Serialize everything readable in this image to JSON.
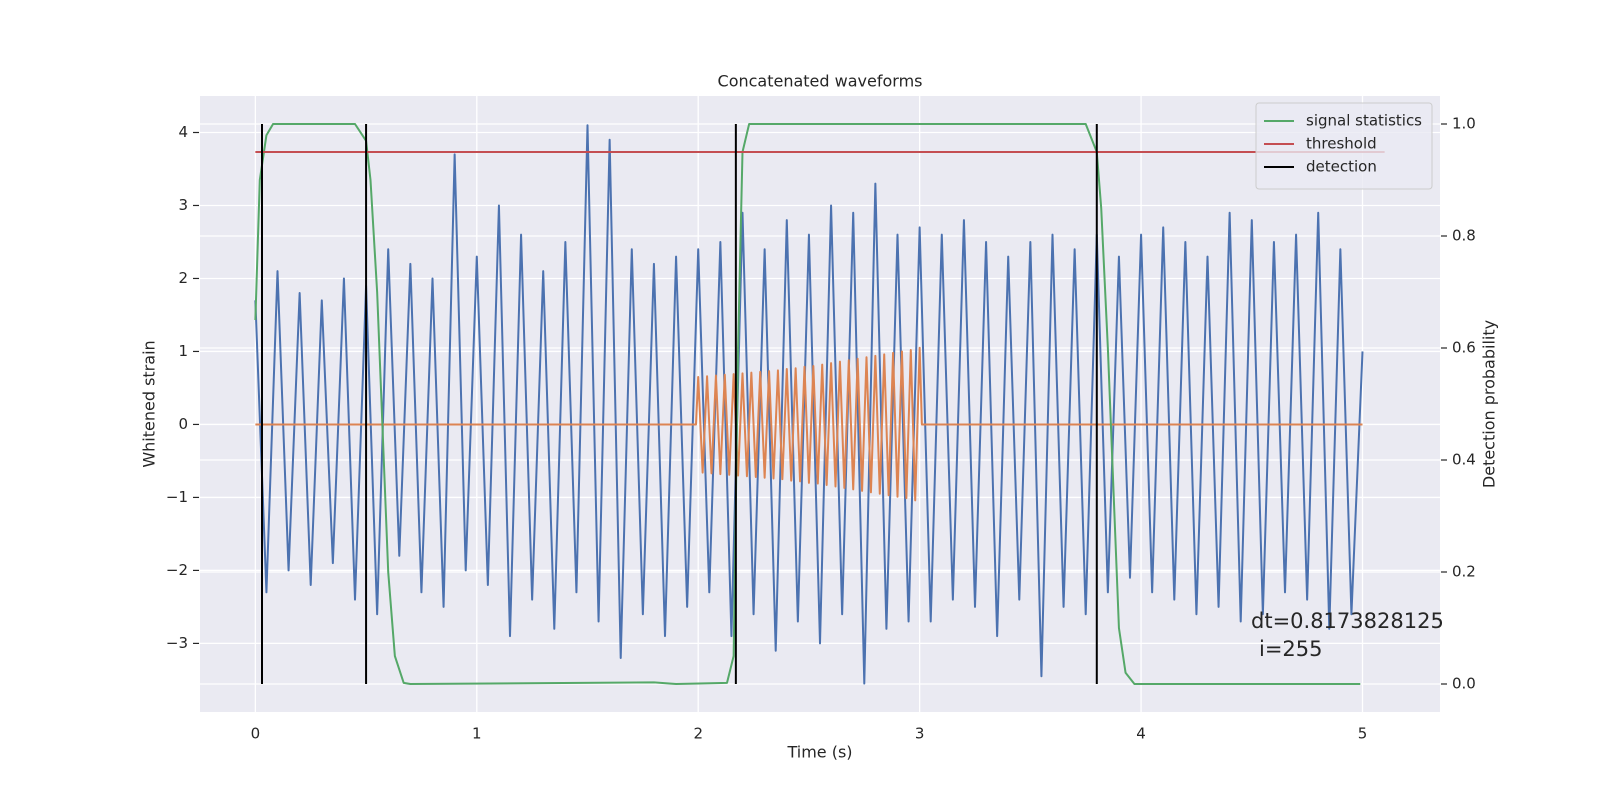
{
  "chart_data": {
    "type": "line",
    "title": "Concatenated waveforms",
    "xlabel": "Time (s)",
    "ylabel": "Whitened strain",
    "y2label": "Detection probability",
    "xlim": [
      -0.25,
      5.35
    ],
    "xticks": [
      0,
      1,
      2,
      3,
      4,
      5
    ],
    "ylim": [
      -3.94,
      4.5
    ],
    "yticks": [
      {
        "value": -3,
        "label": "−3"
      },
      {
        "value": -2,
        "label": "−2"
      },
      {
        "value": -1,
        "label": "−1"
      },
      0,
      1,
      2,
      3,
      4
    ],
    "y2lim": [
      -0.05,
      1.05
    ],
    "y2ticks": [
      {
        "value": 0,
        "label": "0.0"
      },
      0.2,
      0.4,
      0.6,
      0.8,
      {
        "value": 1,
        "label": "1.0"
      }
    ],
    "grid": true,
    "legend": "upper right",
    "annotation": [
      "dt=0.8173828125",
      "i=255"
    ],
    "series": [
      {
        "color": "#4c72b0",
        "x": [
          0,
          0.05,
          0.1,
          0.15,
          0.2,
          0.25,
          0.3,
          0.35,
          0.4,
          0.45,
          0.5,
          0.55,
          0.6,
          0.65,
          0.7,
          0.75,
          0.8,
          0.85,
          0.9,
          0.95,
          1,
          1.05,
          1.1,
          1.15,
          1.2,
          1.25,
          1.3,
          1.35,
          1.4,
          1.45,
          1.5,
          1.55,
          1.6,
          1.65,
          1.7,
          1.75,
          1.8,
          1.85,
          1.9,
          1.95,
          2,
          2.05,
          2.1,
          2.15,
          2.2,
          2.25,
          2.3,
          2.35,
          2.4,
          2.45,
          2.5,
          2.55,
          2.6,
          2.65,
          2.7,
          2.75,
          2.8,
          2.85,
          2.9,
          2.95,
          3,
          3.05,
          3.1,
          3.15,
          3.2,
          3.25,
          3.3,
          3.35,
          3.4,
          3.45,
          3.5,
          3.55,
          3.6,
          3.65,
          3.7,
          3.75,
          3.8,
          3.85,
          3.9,
          3.95,
          4,
          4.05,
          4.1,
          4.15,
          4.2,
          4.25,
          4.3,
          4.35,
          4.4,
          4.45,
          4.5,
          4.55,
          4.6,
          4.65,
          4.7,
          4.75,
          4.8,
          4.85,
          4.9,
          4.95,
          5
        ],
        "values": [
          1.7,
          -2.3,
          2.1,
          -2.0,
          1.8,
          -2.2,
          1.7,
          -1.9,
          2.0,
          -2.4,
          1.9,
          -2.6,
          2.4,
          -1.8,
          2.2,
          -2.3,
          2.0,
          -2.5,
          3.7,
          -2.0,
          2.3,
          -2.2,
          3.0,
          -2.9,
          2.6,
          -2.4,
          2.1,
          -2.8,
          2.5,
          -2.3,
          4.1,
          -2.7,
          3.9,
          -3.2,
          2.4,
          -2.6,
          2.2,
          -2.9,
          2.3,
          -2.5,
          2.4,
          -2.3,
          2.5,
          -2.9,
          2.9,
          -2.6,
          2.4,
          -3.1,
          2.8,
          -2.7,
          2.6,
          -3.0,
          3.0,
          -2.6,
          2.9,
          -3.55,
          3.3,
          -2.8,
          2.6,
          -2.7,
          2.7,
          -2.7,
          2.6,
          -2.4,
          2.8,
          -2.5,
          2.5,
          -2.9,
          2.3,
          -2.4,
          2.5,
          -3.45,
          2.6,
          -2.5,
          2.4,
          -2.6,
          2.6,
          -2.3,
          2.3,
          -2.1,
          2.6,
          -2.3,
          2.7,
          -2.4,
          2.5,
          -2.6,
          2.3,
          -2.5,
          2.9,
          -2.7,
          2.8,
          -2.6,
          2.5,
          -2.3,
          2.6,
          -2.4,
          2.9,
          -2.8,
          2.4,
          -2.6,
          1.0
        ]
      },
      {
        "color": "#dd8452",
        "x": [
          0,
          1.99,
          2,
          2.02,
          2.04,
          2.06,
          2.08,
          2.1,
          2.12,
          2.14,
          2.16,
          2.18,
          2.2,
          2.22,
          2.24,
          2.26,
          2.28,
          2.3,
          2.32,
          2.34,
          2.36,
          2.38,
          2.4,
          2.42,
          2.44,
          2.46,
          2.48,
          2.5,
          2.52,
          2.54,
          2.56,
          2.58,
          2.6,
          2.62,
          2.64,
          2.66,
          2.68,
          2.7,
          2.72,
          2.74,
          2.76,
          2.78,
          2.8,
          2.82,
          2.84,
          2.86,
          2.88,
          2.9,
          2.92,
          2.94,
          2.96,
          2.98,
          3,
          3.01,
          5
        ],
        "values": [
          0,
          0,
          0.65,
          -0.66,
          0.66,
          -0.67,
          0.67,
          -0.68,
          0.68,
          -0.69,
          0.69,
          -0.7,
          0.7,
          -0.71,
          0.71,
          -0.72,
          0.72,
          -0.73,
          0.73,
          -0.74,
          0.74,
          -0.75,
          0.76,
          -0.77,
          0.77,
          -0.78,
          0.79,
          -0.8,
          0.8,
          -0.81,
          0.82,
          -0.83,
          0.84,
          -0.85,
          0.86,
          -0.87,
          0.88,
          -0.89,
          0.9,
          -0.91,
          0.92,
          -0.93,
          0.94,
          -0.95,
          0.96,
          -0.97,
          0.98,
          -0.99,
          1.0,
          -1.01,
          1.02,
          -1.04,
          1.05,
          0,
          0
        ]
      },
      {
        "name": "signal statistics",
        "color": "#55a868",
        "axis": "y2",
        "x": [
          0,
          0.02,
          0.05,
          0.08,
          0.45,
          0.5,
          0.52,
          0.55,
          0.6,
          0.63,
          0.67,
          0.7,
          1.8,
          1.9,
          2.13,
          2.16,
          2.18,
          2.2,
          2.23,
          3.75,
          3.8,
          3.82,
          3.85,
          3.88,
          3.9,
          3.93,
          3.97,
          4.99
        ],
        "values": [
          0.65,
          0.9,
          0.98,
          1.0,
          1.0,
          0.97,
          0.9,
          0.7,
          0.2,
          0.05,
          0.002,
          0,
          0.003,
          0,
          0.002,
          0.05,
          0.6,
          0.95,
          1.0,
          1.0,
          0.95,
          0.85,
          0.6,
          0.3,
          0.1,
          0.02,
          0,
          0
        ]
      },
      {
        "name": "threshold",
        "color": "#c44e52",
        "axis": "y2",
        "x": [
          0,
          5.1
        ],
        "values": [
          0.95,
          0.95
        ]
      },
      {
        "name": "detection",
        "color": "#000000",
        "axis": "y2",
        "style": "vlines",
        "x": [
          0.03,
          0.5,
          2.17,
          3.8
        ],
        "span": [
          0,
          1
        ]
      }
    ]
  }
}
